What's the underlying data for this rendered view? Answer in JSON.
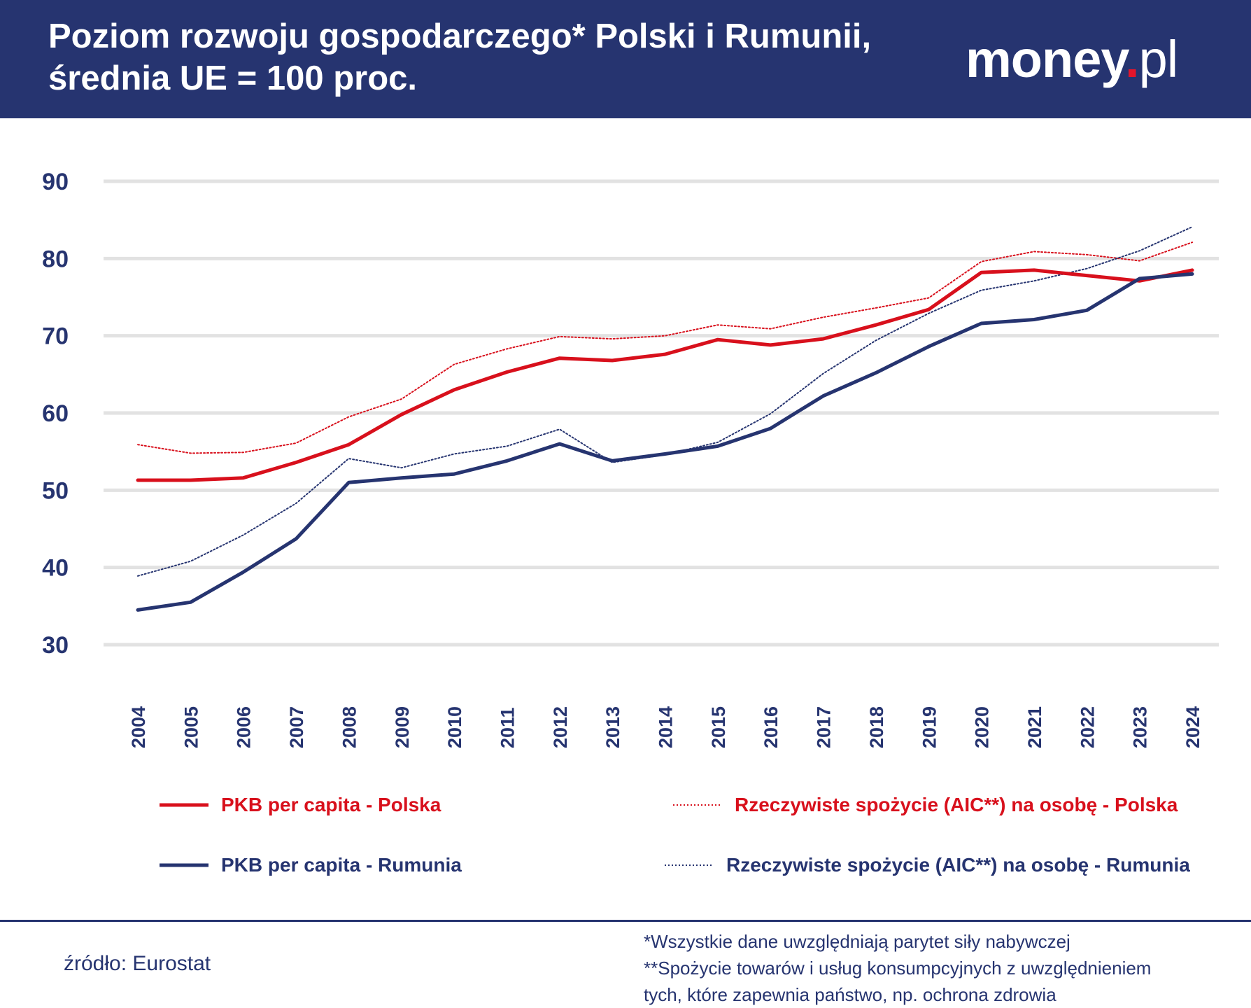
{
  "header": {
    "title_line1": "Poziom rozwoju gospodarczego* Polski i Rumunii,",
    "title_line2": "średnia UE = 100 proc.",
    "logo_main": "money",
    "logo_dot": ".",
    "logo_suffix": "pl"
  },
  "colors": {
    "navy": "#263470",
    "red": "#d8101c",
    "grid": "#e2e2e2"
  },
  "chart_data": {
    "type": "line",
    "title": "Poziom rozwoju gospodarczego* Polski i Rumunii, średnia UE = 100 proc.",
    "xlabel": "",
    "ylabel": "",
    "x": [
      "2004",
      "2005",
      "2006",
      "2007",
      "2008",
      "2009",
      "2010",
      "2011",
      "2012",
      "2013",
      "2014",
      "2015",
      "2016",
      "2017",
      "2018",
      "2019",
      "2020",
      "2021",
      "2022",
      "2023",
      "2024"
    ],
    "ylim": [
      30,
      90
    ],
    "yticks": [
      30,
      40,
      50,
      60,
      70,
      80,
      90
    ],
    "grid": true,
    "legend_position": "bottom",
    "series": [
      {
        "name": "PKB per capita - Polska",
        "color": "#d8101c",
        "style": "solid",
        "values": [
          51.3,
          51.3,
          51.6,
          53.6,
          55.9,
          59.8,
          63.0,
          65.3,
          67.1,
          66.8,
          67.6,
          69.5,
          68.8,
          69.6,
          71.4,
          73.4,
          78.2,
          78.5,
          77.8,
          77.1,
          78.5
        ]
      },
      {
        "name": "Rzeczywiste spożycie (AIC**) na osobę - Polska",
        "color": "#d8101c",
        "style": "dotted",
        "values": [
          55.9,
          54.8,
          54.9,
          56.1,
          59.5,
          61.8,
          66.3,
          68.3,
          69.9,
          69.6,
          70.0,
          71.4,
          70.9,
          72.4,
          73.6,
          74.9,
          79.6,
          80.9,
          80.5,
          79.7,
          82.1
        ]
      },
      {
        "name": "PKB per capita - Rumunia",
        "color": "#263470",
        "style": "solid",
        "values": [
          34.5,
          35.5,
          39.4,
          43.7,
          51.0,
          51.6,
          52.1,
          53.8,
          56.0,
          53.8,
          54.7,
          55.7,
          58.0,
          62.2,
          65.2,
          68.6,
          71.6,
          72.1,
          73.3,
          77.4,
          78.0
        ]
      },
      {
        "name": "Rzeczywiste spożycie (AIC**) na osobę - Rumunia",
        "color": "#263470",
        "style": "dotted",
        "values": [
          38.9,
          40.8,
          44.2,
          48.3,
          54.1,
          52.9,
          54.7,
          55.7,
          57.9,
          53.6,
          54.6,
          56.2,
          59.9,
          65.1,
          69.4,
          72.9,
          75.9,
          77.1,
          78.7,
          81.0,
          84.1
        ]
      }
    ]
  },
  "footer": {
    "source": "źródło: Eurostat",
    "note1": "*Wszystkie dane uwzględniają parytet siły nabywczej",
    "note2": "**Spożycie towarów i usług konsumpcyjnych z uwzględnieniem",
    "note3": "tych, które zapewnia państwo, np. ochrona zdrowia"
  }
}
